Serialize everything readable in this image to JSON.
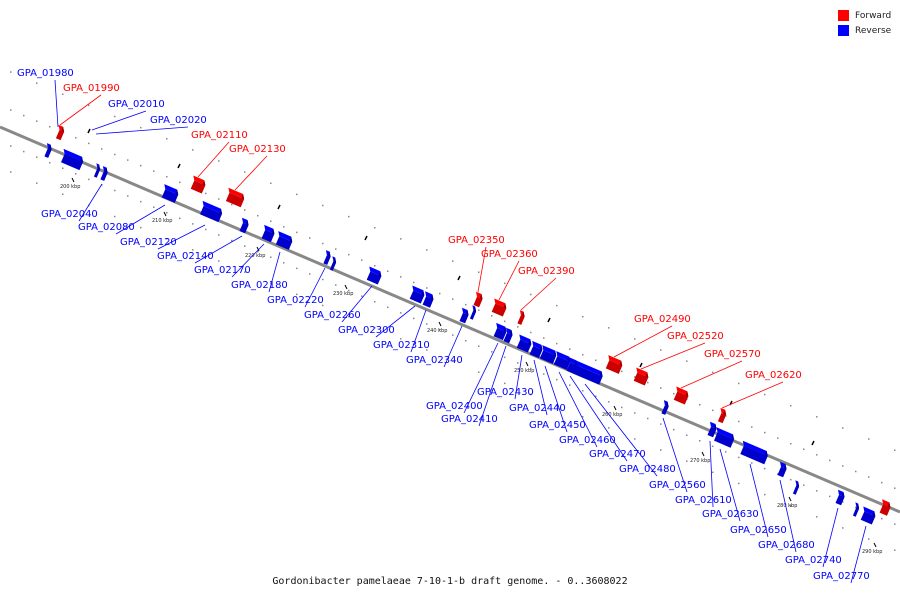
{
  "legend": {
    "forward": {
      "label": "Forward",
      "color": "#ff0000"
    },
    "reverse": {
      "label": "Reverse",
      "color": "#0000ff"
    }
  },
  "caption": "Gordonibacter pamelaeae 7-10-1-b draft genome. - 0..3608022",
  "scale": {
    "unit": "kbp",
    "ticks": [
      "200 kbp",
      "210 kbp",
      "220 kbp",
      "230 kbp",
      "240 kbp",
      "250 kbp",
      "260 kbp",
      "270 kbp",
      "280 kbp",
      "290 kbp"
    ]
  },
  "forward_genes": [
    "GPA_01990",
    "GPA_02110",
    "GPA_02130",
    "GPA_02350",
    "GPA_02360",
    "GPA_02390",
    "GPA_02490",
    "GPA_02520",
    "GPA_02570",
    "GPA_02620"
  ],
  "reverse_genes": [
    "GPA_01980",
    "GPA_02010",
    "GPA_02020",
    "GPA_02040",
    "GPA_02080",
    "GPA_02120",
    "GPA_02140",
    "GPA_02170",
    "GPA_02180",
    "GPA_02220",
    "GPA_02260",
    "GPA_02300",
    "GPA_02310",
    "GPA_02340",
    "GPA_02400",
    "GPA_02410",
    "GPA_02430",
    "GPA_02440",
    "GPA_02450",
    "GPA_02460",
    "GPA_02470",
    "GPA_02480",
    "GPA_02560",
    "GPA_02610",
    "GPA_02630",
    "GPA_02650",
    "GPA_02680",
    "GPA_02740",
    "GPA_02770"
  ]
}
